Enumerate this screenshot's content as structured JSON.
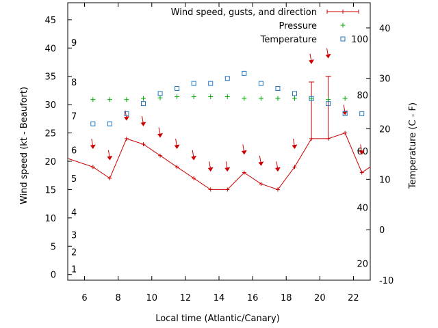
{
  "chart_data": {
    "type": "line",
    "xlabel": "Local time (Atlantic/Canary)",
    "ylabel": "Wind speed (kt - Beaufort)",
    "y2label": "Temperature (C - F)",
    "xlim": [
      5,
      23
    ],
    "ylim": [
      -1,
      48
    ],
    "y2lim": [
      -10,
      45
    ],
    "x_ticks": [
      6,
      8,
      10,
      12,
      14,
      16,
      18,
      20,
      22
    ],
    "y_ticks": [
      0,
      5,
      10,
      15,
      20,
      25,
      30,
      35,
      40,
      45
    ],
    "y2_ticks": [
      -10,
      0,
      10,
      20,
      30,
      40
    ],
    "beaufort_labels": [
      {
        "label": "1",
        "kt": 1
      },
      {
        "label": "2",
        "kt": 4
      },
      {
        "label": "3",
        "kt": 7
      },
      {
        "label": "4",
        "kt": 11
      },
      {
        "label": "5",
        "kt": 17
      },
      {
        "label": "6",
        "kt": 22
      },
      {
        "label": "7",
        "kt": 28
      },
      {
        "label": "8",
        "kt": 34
      },
      {
        "label": "9",
        "kt": 41
      }
    ],
    "fahrenheit_labels": [
      {
        "label": "20",
        "c": -6.7
      },
      {
        "label": "40",
        "c": 4.4
      },
      {
        "label": "60",
        "c": 15.6
      },
      {
        "label": "80",
        "c": 26.7
      },
      {
        "label": "100",
        "c": 37.8
      }
    ],
    "legend": {
      "position": "top-right",
      "entries": [
        {
          "label": "Wind speed, gusts, and direction",
          "color": "#cc0000"
        },
        {
          "label": "Pressure",
          "color": "#00aa00"
        },
        {
          "label": "Temperature",
          "color": "#1f77c4"
        }
      ]
    },
    "series": [
      {
        "name": "Wind speed, gusts, and direction",
        "color": "#cc0000",
        "x": [
          5,
          6.5,
          7.5,
          8.5,
          9.5,
          10.5,
          11.5,
          12.5,
          13.5,
          14.5,
          15.5,
          16.5,
          17.5,
          18.5,
          19.5,
          20.5,
          21.5,
          22.5,
          23
        ],
        "y": [
          20.5,
          19,
          17,
          24,
          23,
          21,
          19,
          17,
          15,
          15,
          18,
          16,
          15,
          19,
          24,
          24,
          25,
          18,
          19
        ],
        "gusts": [
          {
            "x": 19.5,
            "y": 34
          },
          {
            "x": 20.5,
            "y": 35
          }
        ],
        "direction_arrows": [
          {
            "x": 6.5,
            "y": 23
          },
          {
            "x": 7.5,
            "y": 21
          },
          {
            "x": 8.5,
            "y": 28
          },
          {
            "x": 9.5,
            "y": 27
          },
          {
            "x": 10.5,
            "y": 25
          },
          {
            "x": 11.5,
            "y": 23
          },
          {
            "x": 12.5,
            "y": 21
          },
          {
            "x": 13.5,
            "y": 19
          },
          {
            "x": 14.5,
            "y": 19
          },
          {
            "x": 15.5,
            "y": 22
          },
          {
            "x": 16.5,
            "y": 20
          },
          {
            "x": 17.5,
            "y": 19
          },
          {
            "x": 18.5,
            "y": 23
          },
          {
            "x": 19.5,
            "y": 38
          },
          {
            "x": 20.5,
            "y": 39
          },
          {
            "x": 21.5,
            "y": 29
          },
          {
            "x": 22.5,
            "y": 22
          }
        ]
      },
      {
        "name": "Pressure",
        "color": "#00aa00",
        "axis": "left",
        "x": [
          6.5,
          7.5,
          8.5,
          9.5,
          10.5,
          11.5,
          12.5,
          13.5,
          14.5,
          15.5,
          16.5,
          17.5,
          18.5,
          19.5,
          20.5,
          21.5
        ],
        "y": [
          30.9,
          30.9,
          30.9,
          31.1,
          31.2,
          31.4,
          31.4,
          31.4,
          31.4,
          31.1,
          31.1,
          31.1,
          31.1,
          31.1,
          30.9,
          31.1
        ]
      },
      {
        "name": "Temperature",
        "color": "#1f77c4",
        "axis": "right",
        "x": [
          6.5,
          7.5,
          8.5,
          9.5,
          10.5,
          11.5,
          12.5,
          13.5,
          14.5,
          15.5,
          16.5,
          17.5,
          18.5,
          19.5,
          20.5,
          21.5,
          22.5
        ],
        "y": [
          21,
          21,
          23,
          25,
          27,
          28,
          29,
          29,
          30,
          31,
          29,
          28,
          27,
          26,
          25,
          23,
          23
        ]
      }
    ]
  }
}
